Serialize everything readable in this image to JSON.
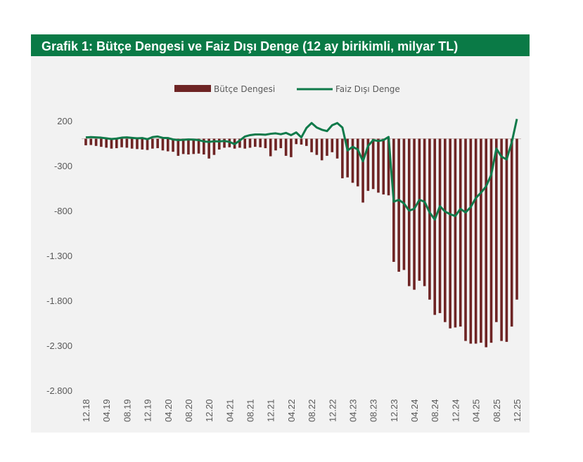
{
  "title": "Grafik 1: Bütçe Dengesi ve Faiz Dışı Denge (12 ay birikimli, milyar TL)",
  "colors": {
    "title_bg": "#0a7a46",
    "bar": "#6e2424",
    "line": "#0f7a4a",
    "panel": "#f2f2f2"
  },
  "chart_data": {
    "type": "bar+line",
    "title": "Grafik 1: Bütçe Dengesi ve Faiz Dışı Denge (12 ay birikimli, milyar TL)",
    "legend": [
      "Bütçe Dengesi",
      "Faiz Dışı Denge"
    ],
    "ylim": [
      -2800,
      200
    ],
    "yticks": [
      200,
      -300,
      -800,
      -1300,
      -1800,
      -2300,
      -2800
    ],
    "ytick_labels": [
      "200",
      "-300",
      "-800",
      "-1.300",
      "-1.800",
      "-2.300",
      "-2.800"
    ],
    "xtick_labels": [
      "12.18",
      "04.19",
      "08.19",
      "12.19",
      "04.20",
      "08.20",
      "12.20",
      "04.21",
      "08.21",
      "12.21",
      "04.22",
      "08.22",
      "12.22",
      "04.23",
      "08.23",
      "12.23",
      "04.24",
      "08.24",
      "12.24",
      "04.25",
      "08.25",
      "12.25"
    ],
    "series": [
      {
        "name": "Bütçe Dengesi",
        "type": "bar",
        "values": [
          -73,
          -70,
          -80,
          -90,
          -100,
          -110,
          -105,
          -95,
          -100,
          -110,
          -115,
          -120,
          -125,
          -110,
          -105,
          -130,
          -140,
          -145,
          -190,
          -170,
          -175,
          -170,
          -165,
          -175,
          -220,
          -180,
          -120,
          -100,
          -95,
          -110,
          -100,
          -110,
          -100,
          -90,
          -95,
          -105,
          -195,
          -130,
          -105,
          -190,
          -205,
          -60,
          -65,
          -80,
          -150,
          -180,
          -240,
          -190,
          -150,
          -220,
          -440,
          -430,
          -490,
          -530,
          -710,
          -580,
          -560,
          -600,
          -620,
          -630,
          -1370,
          -1480,
          -1460,
          -1640,
          -1680,
          -1580,
          -1640,
          -1790,
          -1960,
          -1940,
          -2040,
          -2110,
          -2100,
          -2090,
          -2250,
          -2280,
          -2280,
          -2270,
          -2320,
          -2270,
          -2040,
          -2250,
          -2260,
          -2090,
          -1790
        ]
      },
      {
        "name": "Faiz Dışı Denge",
        "type": "line",
        "values": [
          15,
          18,
          15,
          12,
          5,
          -3,
          2,
          12,
          15,
          10,
          5,
          8,
          -5,
          18,
          25,
          10,
          8,
          -8,
          -15,
          -12,
          -8,
          -10,
          -15,
          -30,
          -35,
          -28,
          -30,
          -25,
          -35,
          -60,
          -20,
          25,
          40,
          48,
          48,
          45,
          55,
          60,
          50,
          65,
          40,
          70,
          15,
          120,
          175,
          125,
          100,
          85,
          150,
          175,
          125,
          -130,
          -90,
          -120,
          -250,
          -80,
          -15,
          -25,
          -15,
          20,
          -700,
          -680,
          -720,
          -800,
          -780,
          -680,
          -700,
          -820,
          -900,
          -750,
          -810,
          -840,
          -860,
          -780,
          -820,
          -760,
          -660,
          -600,
          -530,
          -400,
          -110,
          -200,
          -230,
          -40,
          220
        ]
      }
    ]
  }
}
